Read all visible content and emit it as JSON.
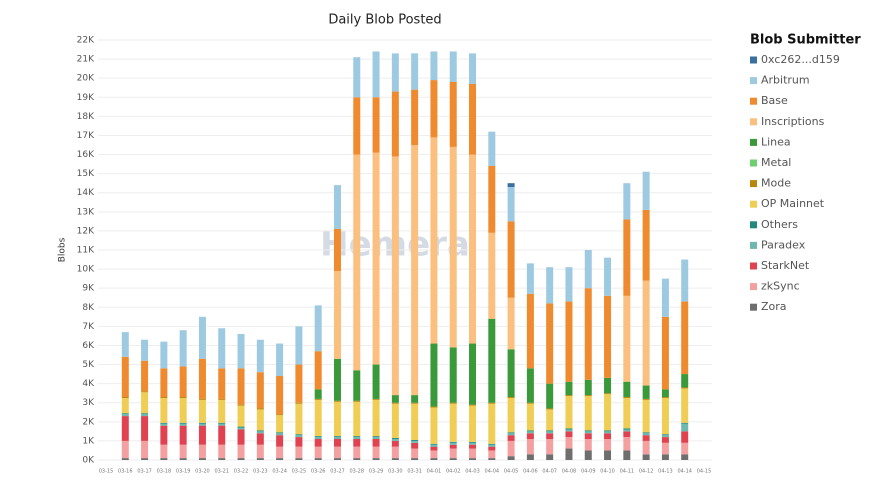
{
  "chart_data": {
    "type": "stacked_bar",
    "title": "Daily Blob Posted",
    "y_label": "Blobs",
    "legend_title": "Blob Submitter",
    "watermark": "Hemera",
    "legend": "right",
    "grid": true,
    "categories": [
      "03-15",
      "03-16",
      "03-17",
      "03-18",
      "03-19",
      "03-20",
      "03-21",
      "03-22",
      "03-23",
      "03-24",
      "03-25",
      "03-26",
      "03-27",
      "03-28",
      "03-29",
      "03-30",
      "03-31",
      "04-01",
      "04-02",
      "04-03",
      "04-04",
      "04-05",
      "04-06",
      "04-07",
      "04-08",
      "04-09",
      "04-10",
      "04-11",
      "04-12",
      "04-13",
      "04-14",
      "04-15"
    ],
    "ylim": [
      0,
      22000
    ],
    "yticks": [
      {
        "value": 0,
        "label": "0K"
      },
      {
        "value": 1000,
        "label": "1K"
      },
      {
        "value": 2000,
        "label": "2K"
      },
      {
        "value": 3000,
        "label": "3K"
      },
      {
        "value": 4000,
        "label": "4K"
      },
      {
        "value": 5000,
        "label": "5K"
      },
      {
        "value": 6000,
        "label": "6K"
      },
      {
        "value": 7000,
        "label": "7K"
      },
      {
        "value": 8000,
        "label": "8K"
      },
      {
        "value": 9000,
        "label": "9K"
      },
      {
        "value": 10000,
        "label": "10K"
      },
      {
        "value": 11000,
        "label": "11K"
      },
      {
        "value": 12000,
        "label": "12K"
      },
      {
        "value": 13000,
        "label": "13K"
      },
      {
        "value": 14000,
        "label": "14K"
      },
      {
        "value": 15000,
        "label": "15K"
      },
      {
        "value": 16000,
        "label": "16K"
      },
      {
        "value": 17000,
        "label": "17K"
      },
      {
        "value": 18000,
        "label": "18K"
      },
      {
        "value": 19000,
        "label": "19K"
      },
      {
        "value": 20000,
        "label": "20K"
      },
      {
        "value": 21000,
        "label": "21K"
      },
      {
        "value": 22000,
        "label": "22K"
      }
    ],
    "series": [
      {
        "name": "0xc262...d159",
        "color": "#3b6fa0",
        "values": [
          0,
          0,
          0,
          0,
          0,
          0,
          0,
          0,
          0,
          0,
          0,
          0,
          0,
          0,
          0,
          0,
          0,
          0,
          0,
          0,
          0,
          200,
          0,
          0,
          0,
          0,
          0,
          0,
          0,
          0,
          0,
          0
        ]
      },
      {
        "name": "Arbitrum",
        "color": "#9ecae1",
        "values": [
          0,
          1300,
          1100,
          1400,
          1900,
          2200,
          2100,
          1800,
          1700,
          1700,
          2000,
          2400,
          2300,
          2100,
          2400,
          2000,
          1900,
          1500,
          1600,
          1600,
          1800,
          1800,
          1600,
          1900,
          1800,
          2000,
          2000,
          1900,
          2000,
          2000,
          2200,
          0
        ]
      },
      {
        "name": "Base",
        "color": "#ef8a2e",
        "values": [
          0,
          2100,
          1600,
          1500,
          1600,
          2100,
          1600,
          1900,
          1900,
          2000,
          2000,
          2000,
          2200,
          3000,
          2900,
          3400,
          2900,
          3000,
          3400,
          3700,
          3500,
          4000,
          3900,
          4200,
          4200,
          4800,
          4300,
          4000,
          3700,
          3800,
          3800,
          0
        ]
      },
      {
        "name": "Inscriptions",
        "color": "#fbbf7f",
        "values": [
          0,
          0,
          0,
          0,
          0,
          0,
          0,
          0,
          0,
          0,
          0,
          0,
          4600,
          11300,
          11100,
          12500,
          13100,
          10800,
          10500,
          9900,
          4500,
          2700,
          0,
          0,
          0,
          0,
          0,
          4500,
          5500,
          0,
          0,
          0
        ]
      },
      {
        "name": "Linea",
        "color": "#3a9a3a",
        "values": [
          0,
          0,
          0,
          0,
          0,
          0,
          0,
          0,
          0,
          0,
          0,
          500,
          2200,
          1600,
          1800,
          400,
          400,
          3300,
          2900,
          3200,
          4400,
          2500,
          1800,
          1300,
          700,
          800,
          800,
          800,
          700,
          400,
          700,
          0
        ]
      },
      {
        "name": "Metal",
        "color": "#6dcf6d",
        "values": [
          0,
          0,
          0,
          0,
          0,
          0,
          0,
          0,
          0,
          0,
          0,
          0,
          0,
          0,
          0,
          0,
          0,
          0,
          0,
          0,
          0,
          0,
          0,
          0,
          0,
          0,
          0,
          0,
          0,
          0,
          0,
          0
        ]
      },
      {
        "name": "Mode",
        "color": "#b8860b",
        "values": [
          0,
          50,
          50,
          50,
          50,
          50,
          50,
          50,
          50,
          50,
          50,
          50,
          50,
          50,
          50,
          50,
          50,
          50,
          50,
          50,
          50,
          50,
          50,
          50,
          50,
          50,
          50,
          50,
          50,
          50,
          50,
          0
        ]
      },
      {
        "name": "OP Mainnet",
        "color": "#f0cd55",
        "values": [
          0,
          800,
          1100,
          1300,
          1300,
          1200,
          1200,
          1100,
          1100,
          900,
          1600,
          1900,
          1800,
          1800,
          1900,
          1800,
          1900,
          1900,
          2000,
          1900,
          2100,
          1800,
          1400,
          1100,
          1700,
          1800,
          1900,
          1600,
          1700,
          1900,
          1800,
          0
        ]
      },
      {
        "name": "Others",
        "color": "#1f8a7d",
        "values": [
          0,
          50,
          50,
          50,
          50,
          50,
          50,
          50,
          50,
          50,
          50,
          50,
          50,
          50,
          50,
          50,
          50,
          50,
          50,
          50,
          50,
          50,
          50,
          50,
          50,
          50,
          50,
          50,
          50,
          50,
          50,
          0
        ]
      },
      {
        "name": "Paradex",
        "color": "#6fb8b0",
        "values": [
          0,
          100,
          100,
          100,
          100,
          100,
          100,
          100,
          100,
          100,
          100,
          100,
          100,
          100,
          100,
          100,
          100,
          100,
          100,
          100,
          100,
          100,
          100,
          100,
          100,
          100,
          100,
          100,
          100,
          100,
          400,
          0
        ]
      },
      {
        "name": "StarkNet",
        "color": "#e0434f",
        "values": [
          0,
          1300,
          1300,
          1000,
          1000,
          1000,
          1000,
          800,
          600,
          600,
          500,
          400,
          400,
          400,
          400,
          300,
          300,
          200,
          200,
          200,
          200,
          300,
          300,
          300,
          300,
          300,
          300,
          300,
          300,
          300,
          600,
          0
        ]
      },
      {
        "name": "zkSync",
        "color": "#f4a0a0",
        "values": [
          0,
          900,
          900,
          700,
          700,
          700,
          700,
          700,
          700,
          600,
          600,
          600,
          600,
          600,
          600,
          600,
          500,
          400,
          500,
          500,
          400,
          800,
          800,
          800,
          600,
          600,
          600,
          700,
          700,
          600,
          600,
          0
        ]
      },
      {
        "name": "Zora",
        "color": "#6e6e6e",
        "values": [
          0,
          100,
          100,
          100,
          100,
          100,
          100,
          100,
          100,
          100,
          100,
          100,
          100,
          100,
          100,
          100,
          100,
          100,
          100,
          100,
          100,
          200,
          300,
          300,
          600,
          500,
          500,
          500,
          300,
          300,
          300,
          0
        ]
      }
    ]
  }
}
